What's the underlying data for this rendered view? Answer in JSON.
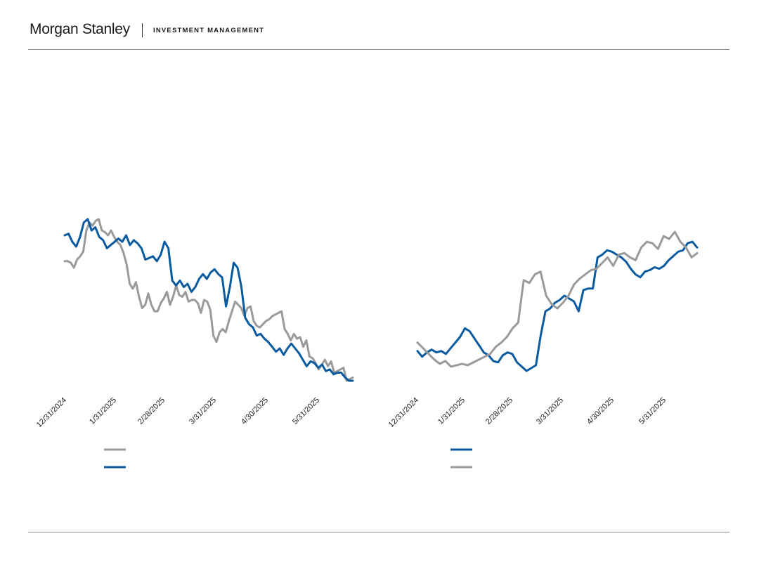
{
  "header": {
    "brand_name": "Morgan Stanley",
    "brand_sub": "INVESTMENT MANAGEMENT"
  },
  "colors": {
    "blue": "#0a5aa0",
    "gray": "#9a9a9a",
    "rule": "#8c8c8c"
  },
  "chart_data": [
    {
      "type": "line",
      "x_tick_labels": [
        "12/31/2024",
        "1/31/2025",
        "2/28/2025",
        "3/31/2025",
        "4/30/2025",
        "5/31/2025"
      ],
      "x_range": [
        "12/31/2024",
        "6/20/2025"
      ],
      "legend_placement": "bottom-left",
      "series": [
        {
          "color": "gray",
          "values": [
            0.74,
            0.74,
            0.73,
            0.7,
            0.75,
            0.77,
            0.8,
            0.93,
            0.98,
            0.96,
            0.99,
            1.0,
            0.93,
            0.92,
            0.9,
            0.93,
            0.89,
            0.86,
            0.84,
            0.79,
            0.72,
            0.6,
            0.57,
            0.61,
            0.52,
            0.45,
            0.47,
            0.54,
            0.47,
            0.43,
            0.43,
            0.48,
            0.51,
            0.55,
            0.47,
            0.52,
            0.59,
            0.53,
            0.52,
            0.55,
            0.49,
            0.5,
            0.5,
            0.48,
            0.42,
            0.5,
            0.49,
            0.44,
            0.28,
            0.24,
            0.3,
            0.32,
            0.3,
            0.37,
            0.43,
            0.49,
            0.47,
            0.45,
            0.4,
            0.45,
            0.46,
            0.37,
            0.34,
            0.33,
            0.35,
            0.37,
            0.38,
            0.4,
            0.41,
            0.42,
            0.43,
            0.32,
            0.29,
            0.25,
            0.29,
            0.26,
            0.27,
            0.21,
            0.25,
            0.15,
            0.14,
            0.11,
            0.07,
            0.1,
            0.13,
            0.09,
            0.12,
            0.05,
            0.06,
            0.07,
            0.08,
            0.0,
            0.01,
            0.02
          ]
        },
        {
          "color": "blue",
          "values": [
            0.9,
            0.91,
            0.86,
            0.83,
            0.89,
            0.98,
            1.0,
            0.93,
            0.95,
            0.89,
            0.87,
            0.82,
            0.84,
            0.86,
            0.88,
            0.86,
            0.9,
            0.84,
            0.87,
            0.85,
            0.82,
            0.75,
            0.76,
            0.77,
            0.74,
            0.78,
            0.86,
            0.82,
            0.62,
            0.59,
            0.62,
            0.58,
            0.6,
            0.55,
            0.58,
            0.63,
            0.66,
            0.63,
            0.67,
            0.69,
            0.66,
            0.64,
            0.46,
            0.58,
            0.73,
            0.7,
            0.58,
            0.39,
            0.35,
            0.33,
            0.28,
            0.29,
            0.26,
            0.24,
            0.21,
            0.18,
            0.2,
            0.16,
            0.2,
            0.23,
            0.2,
            0.17,
            0.13,
            0.09,
            0.12,
            0.11,
            0.08,
            0.1,
            0.06,
            0.07,
            0.04,
            0.05,
            0.05,
            0.02,
            0.0,
            0.0
          ]
        }
      ]
    },
    {
      "type": "line",
      "x_tick_labels": [
        "12/31/2024",
        "1/31/2025",
        "2/28/2025",
        "3/31/2025",
        "4/30/2025",
        "5/31/2025"
      ],
      "x_range": [
        "12/31/2024",
        "6/20/2025"
      ],
      "legend_placement": "bottom-left",
      "series": [
        {
          "color": "blue",
          "values": [
            0.14,
            0.1,
            0.13,
            0.15,
            0.13,
            0.14,
            0.12,
            0.16,
            0.2,
            0.24,
            0.3,
            0.28,
            0.23,
            0.18,
            0.13,
            0.11,
            0.07,
            0.06,
            0.11,
            0.13,
            0.12,
            0.06,
            0.03,
            0.0,
            0.02,
            0.04,
            0.25,
            0.42,
            0.44,
            0.48,
            0.5,
            0.53,
            0.51,
            0.49,
            0.42,
            0.57,
            0.58,
            0.58,
            0.8,
            0.82,
            0.85,
            0.84,
            0.82,
            0.8,
            0.77,
            0.72,
            0.68,
            0.66,
            0.7,
            0.71,
            0.73,
            0.72,
            0.74,
            0.78,
            0.81,
            0.84,
            0.85,
            0.9,
            0.91,
            0.87
          ]
        },
        {
          "color": "gray",
          "values": [
            0.2,
            0.16,
            0.12,
            0.08,
            0.05,
            0.07,
            0.03,
            0.04,
            0.05,
            0.04,
            0.06,
            0.08,
            0.1,
            0.12,
            0.17,
            0.2,
            0.24,
            0.3,
            0.34,
            0.64,
            0.62,
            0.68,
            0.7,
            0.53,
            0.47,
            0.44,
            0.48,
            0.53,
            0.61,
            0.65,
            0.68,
            0.71,
            0.72,
            0.76,
            0.8,
            0.74,
            0.82,
            0.83,
            0.8,
            0.78,
            0.87,
            0.91,
            0.9,
            0.86,
            0.95,
            0.93,
            0.98,
            0.91,
            0.87,
            0.8,
            0.83
          ]
        }
      ]
    }
  ]
}
